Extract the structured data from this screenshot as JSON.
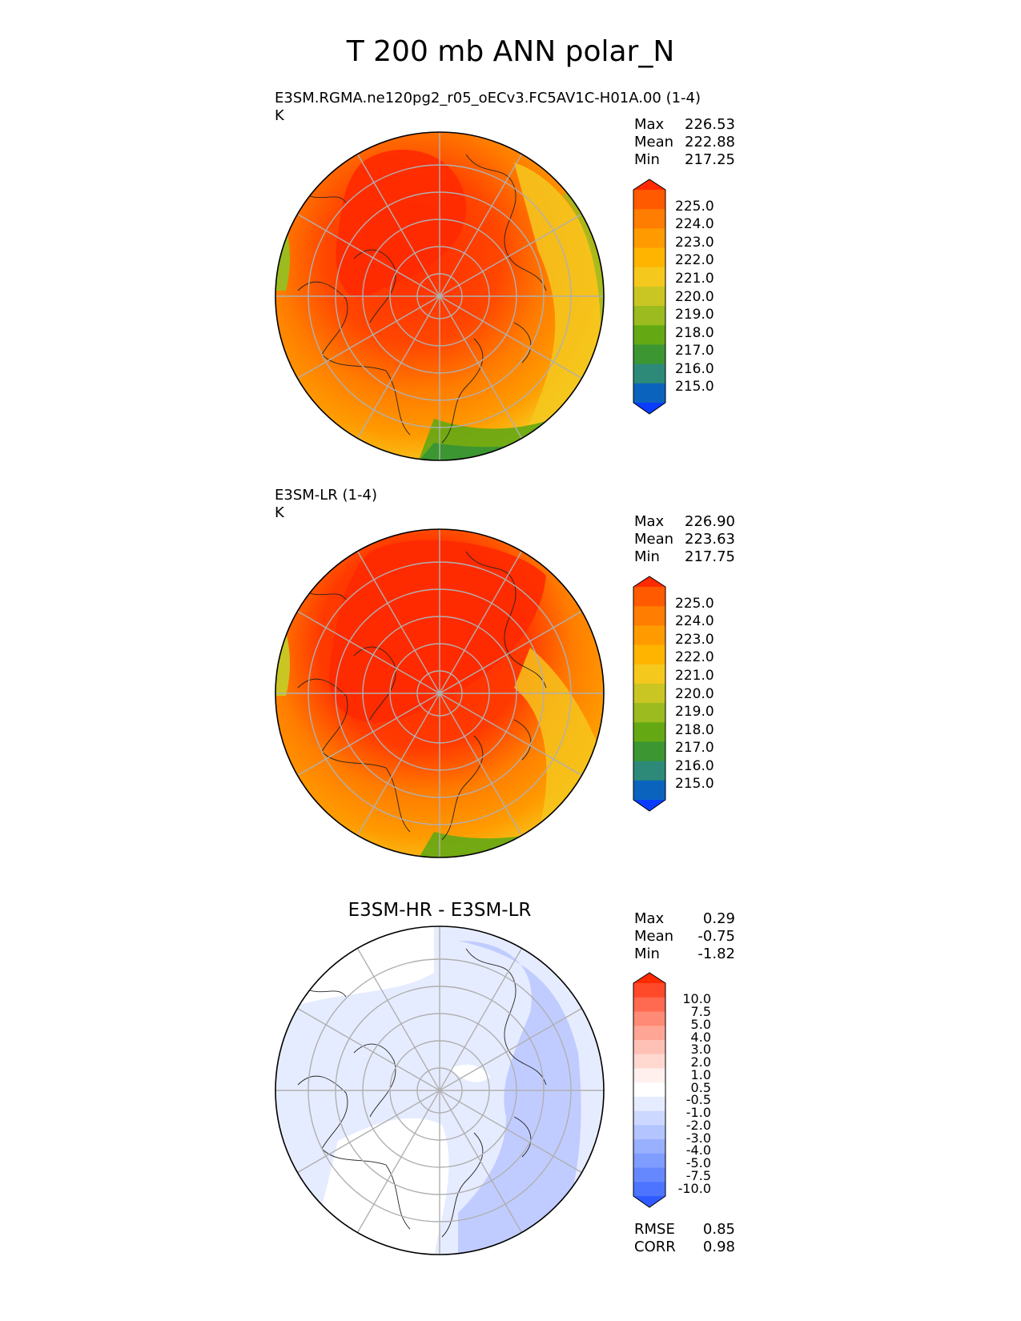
{
  "figure_title": "T 200 mb ANN polar_N",
  "chart_data": [
    {
      "type": "heatmap",
      "projection": "north polar stereographic",
      "title": "E3SM.RGMA.ne120pg2_r05_oECv3.FC5AV1C-H01A.00 (1-4)",
      "units": "K",
      "stats": {
        "max_label": "Max",
        "max": "226.53",
        "mean_label": "Mean",
        "mean": "222.88",
        "min_label": "Min",
        "min": "217.25"
      },
      "colorbar_levels": [
        "225.0",
        "224.0",
        "223.0",
        "222.0",
        "221.0",
        "220.0",
        "219.0",
        "218.0",
        "217.0",
        "216.0",
        "215.0"
      ],
      "colorbar_colors": [
        "#ff2a00",
        "#ff5a00",
        "#ff7d00",
        "#ff9b00",
        "#ffb400",
        "#f5c81e",
        "#c9c623",
        "#9bbb1e",
        "#64a914",
        "#3c9632",
        "#2d8a78",
        "#0a64be",
        "#0a3cff"
      ]
    },
    {
      "type": "heatmap",
      "projection": "north polar stereographic",
      "title": "E3SM-LR (1-4)",
      "units": "K",
      "stats": {
        "max_label": "Max",
        "max": "226.90",
        "mean_label": "Mean",
        "mean": "223.63",
        "min_label": "Min",
        "min": "217.75"
      },
      "colorbar_levels": [
        "225.0",
        "224.0",
        "223.0",
        "222.0",
        "221.0",
        "220.0",
        "219.0",
        "218.0",
        "217.0",
        "216.0",
        "215.0"
      ],
      "colorbar_colors": [
        "#ff2a00",
        "#ff5a00",
        "#ff7d00",
        "#ff9b00",
        "#ffb400",
        "#f5c81e",
        "#c9c623",
        "#9bbb1e",
        "#64a914",
        "#3c9632",
        "#2d8a78",
        "#0a64be",
        "#0a3cff"
      ]
    },
    {
      "type": "heatmap",
      "projection": "north polar stereographic",
      "title": "E3SM-HR - E3SM-LR",
      "stats": {
        "max_label": "Max",
        "max": "0.29",
        "mean_label": "Mean",
        "mean": "-0.75",
        "min_label": "Min",
        "min": "-1.82",
        "rmse_label": "RMSE",
        "rmse": "0.85",
        "corr_label": "CORR",
        "corr": "0.98"
      },
      "colorbar_levels": [
        "10.0",
        "7.5",
        "5.0",
        "4.0",
        "3.0",
        "2.0",
        "1.0",
        "0.5",
        "-0.5",
        "-1.0",
        "-2.0",
        "-3.0",
        "-4.0",
        "-5.0",
        "-7.5",
        "-10.0"
      ],
      "colorbar_colors": [
        "#ff2a00",
        "#ff4a2a",
        "#ff6a50",
        "#ff8a75",
        "#ffa595",
        "#ffc0b5",
        "#ffd8d0",
        "#fff0ee",
        "#ffffff",
        "#e6ecff",
        "#ccd8ff",
        "#b3c4ff",
        "#99b0ff",
        "#7f9cff",
        "#6688ff",
        "#4c74ff",
        "#2f5aff"
      ]
    }
  ]
}
